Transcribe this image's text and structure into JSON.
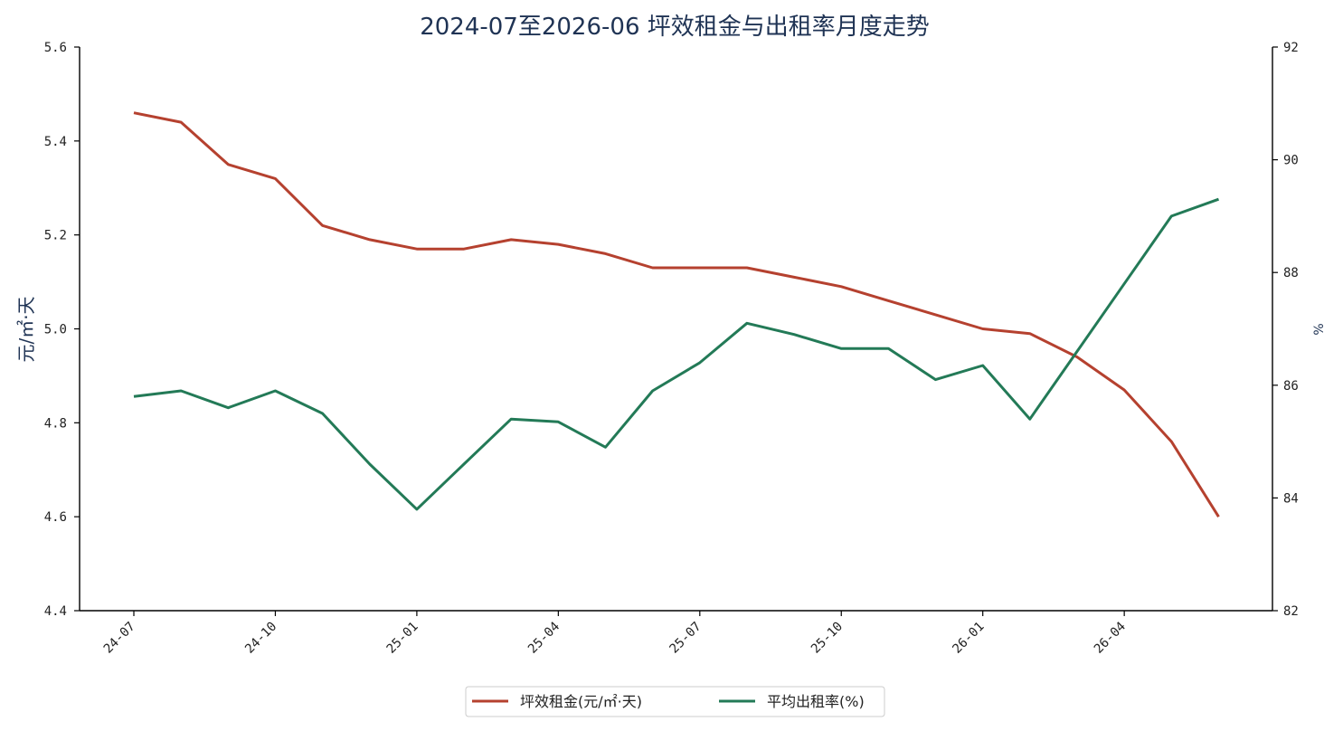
{
  "chart_data": {
    "type": "line",
    "title": "2024-07至2026-06 坪效租金与出租率月度走势",
    "ylabel_left": "元/㎡·天",
    "ylabel_right": "%",
    "xlabel": "",
    "x": [
      "24-07",
      "24-08",
      "24-09",
      "24-10",
      "24-11",
      "24-12",
      "25-01",
      "25-02",
      "25-03",
      "25-04",
      "25-05",
      "25-06",
      "25-07",
      "25-08",
      "25-09",
      "25-10",
      "25-11",
      "25-12",
      "26-01",
      "26-02",
      "26-03",
      "26-04",
      "26-05",
      "26-06"
    ],
    "x_tick_labels": [
      "24-07",
      "24-10",
      "25-01",
      "25-04",
      "25-07",
      "25-10",
      "26-01",
      "26-04"
    ],
    "ylim_left": [
      4.4,
      5.6
    ],
    "yticks_left": [
      "4.4",
      "4.6",
      "4.8",
      "5.0",
      "5.2",
      "5.4",
      "5.6"
    ],
    "ylim_right": [
      82,
      92
    ],
    "yticks_right": [
      "82",
      "84",
      "86",
      "88",
      "90",
      "92"
    ],
    "grid": false,
    "legend_position": "bottom-center",
    "series": [
      {
        "name": "坪效租金(元/㎡·天)",
        "axis": "left",
        "color": "#b5412f",
        "values": [
          5.46,
          5.44,
          5.35,
          5.32,
          5.22,
          5.19,
          5.17,
          5.17,
          5.19,
          5.18,
          5.16,
          5.13,
          5.13,
          5.13,
          5.11,
          5.09,
          5.06,
          5.03,
          5.0,
          4.99,
          4.94,
          4.87,
          4.76,
          4.6
        ]
      },
      {
        "name": "平均出租率(%)",
        "axis": "right",
        "color": "#237a57",
        "values": [
          85.8,
          85.9,
          85.6,
          85.9,
          85.5,
          84.6,
          83.8,
          84.6,
          85.4,
          85.35,
          84.9,
          85.9,
          86.4,
          87.1,
          86.9,
          86.65,
          86.65,
          86.1,
          86.35,
          85.4,
          86.6,
          87.8,
          89.0,
          89.3
        ]
      }
    ]
  }
}
